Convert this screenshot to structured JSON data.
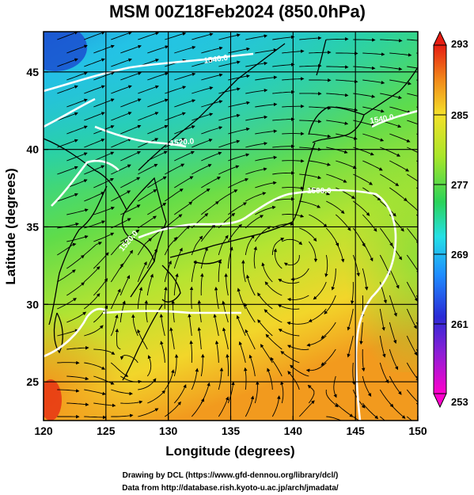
{
  "title": "MSM 00Z18Feb2024 (850.0hPa)",
  "xlabel": "Longitude (degrees)",
  "ylabel": "Latitude  (degrees)",
  "footer": {
    "line1": "Drawing by DCL (https://www.gfd-dennou.org/library/dcl/)",
    "line2": "Data from http://database.rish.kyoto-u.ac.jp/arch/jmadata/"
  },
  "map": {
    "lon_range": [
      120,
      150
    ],
    "lat_range": [
      22.5,
      47.6
    ],
    "lon_ticks": [
      120,
      125,
      130,
      135,
      140,
      145,
      150
    ],
    "lat_ticks": [
      25,
      30,
      35,
      40,
      45
    ],
    "grid": true
  },
  "colorbar": {
    "min": 253,
    "max": 293,
    "tick_values": [
      293,
      285,
      277,
      269,
      261,
      253
    ],
    "colors": [
      "#ff00cc",
      "#3a1fd0",
      "#1f7fff",
      "#25e6e0",
      "#2bd36a",
      "#a8e62a",
      "#f4e12a",
      "#f28a1a",
      "#e61d12"
    ]
  },
  "contour_labels": [
    "1540.0",
    "1520.0",
    "1500.0",
    "1520.0",
    "1540.0"
  ],
  "colors": {
    "contour": "#ffffff",
    "streamline": "#000000",
    "coast": "#000000"
  }
}
